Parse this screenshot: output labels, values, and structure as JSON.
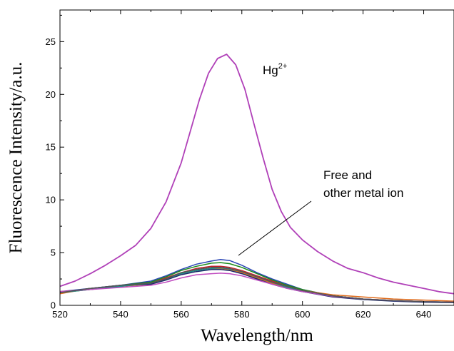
{
  "chart_data": {
    "type": "line",
    "xlabel": "Wavelength/nm",
    "ylabel": "Fluorescence Intensity/a.u.",
    "xlim": [
      520,
      650
    ],
    "ylim": [
      0,
      28
    ],
    "x_ticks": [
      520,
      540,
      560,
      580,
      600,
      620,
      640
    ],
    "y_ticks": [
      0,
      5,
      10,
      15,
      20,
      25
    ],
    "grid": false,
    "annotations": {
      "hg_main": "Hg",
      "hg_sup": "2+",
      "free_line1": "Free and",
      "free_line2": "other metal ion"
    },
    "series": [
      {
        "color": "#b040b8",
        "x": [
          520,
          525,
          530,
          535,
          540,
          545,
          550,
          555,
          560,
          563,
          566,
          569,
          572,
          575,
          578,
          581,
          584,
          587,
          590,
          593,
          596,
          600,
          605,
          610,
          615,
          620,
          625,
          630,
          635,
          640,
          645,
          650
        ],
        "values": [
          1.8,
          2.3,
          3.0,
          3.8,
          4.7,
          5.7,
          7.3,
          9.8,
          13.5,
          16.5,
          19.5,
          22.0,
          23.4,
          23.8,
          22.8,
          20.5,
          17.2,
          14.0,
          11.0,
          8.9,
          7.4,
          6.2,
          5.1,
          4.2,
          3.5,
          3.1,
          2.6,
          2.2,
          1.9,
          1.6,
          1.3,
          1.1
        ]
      },
      {
        "color": "#2a45b5",
        "x": [
          520,
          530,
          540,
          550,
          555,
          560,
          565,
          570,
          573,
          576,
          580,
          585,
          590,
          595,
          600,
          610,
          620,
          630,
          640,
          650
        ],
        "values": [
          1.3,
          1.6,
          1.9,
          2.3,
          2.8,
          3.4,
          3.9,
          4.2,
          4.35,
          4.25,
          3.8,
          3.1,
          2.5,
          2.0,
          1.5,
          0.9,
          0.6,
          0.45,
          0.35,
          0.3
        ]
      },
      {
        "color": "#1a8a1a",
        "x": [
          520,
          530,
          540,
          550,
          555,
          560,
          565,
          570,
          573,
          576,
          580,
          585,
          590,
          595,
          600,
          610,
          620,
          630,
          640,
          650
        ],
        "values": [
          1.2,
          1.5,
          1.9,
          2.2,
          2.7,
          3.3,
          3.7,
          4.0,
          4.05,
          3.95,
          3.6,
          3.0,
          2.4,
          1.9,
          1.5,
          0.9,
          0.6,
          0.45,
          0.35,
          0.3
        ]
      },
      {
        "color": "#e06b1a",
        "x": [
          520,
          530,
          540,
          550,
          555,
          560,
          565,
          570,
          573,
          576,
          580,
          585,
          590,
          595,
          600,
          610,
          620,
          630,
          640,
          650
        ],
        "values": [
          1.1,
          1.6,
          1.8,
          2.0,
          2.5,
          3.0,
          3.3,
          3.5,
          3.5,
          3.4,
          3.1,
          2.6,
          2.1,
          1.7,
          1.4,
          1.0,
          0.8,
          0.6,
          0.5,
          0.4
        ]
      },
      {
        "color": "#c0202a",
        "x": [
          520,
          530,
          540,
          550,
          555,
          560,
          565,
          570,
          573,
          576,
          580,
          585,
          590,
          595,
          600,
          610,
          620,
          630,
          640,
          650
        ],
        "values": [
          1.3,
          1.5,
          1.8,
          2.1,
          2.6,
          3.1,
          3.5,
          3.7,
          3.7,
          3.6,
          3.3,
          2.8,
          2.3,
          1.8,
          1.4,
          0.9,
          0.6,
          0.45,
          0.35,
          0.3
        ]
      },
      {
        "color": "#1a2a6a",
        "x": [
          520,
          530,
          540,
          550,
          555,
          560,
          565,
          570,
          573,
          576,
          580,
          585,
          590,
          595,
          600,
          610,
          620,
          630,
          640,
          650
        ],
        "values": [
          1.2,
          1.6,
          1.9,
          2.0,
          2.4,
          2.9,
          3.2,
          3.4,
          3.4,
          3.3,
          3.0,
          2.5,
          2.0,
          1.6,
          1.3,
          0.8,
          0.55,
          0.4,
          0.3,
          0.25
        ]
      },
      {
        "color": "#208a8a",
        "x": [
          520,
          530,
          540,
          550,
          555,
          560,
          565,
          570,
          573,
          576,
          580,
          585,
          590,
          595,
          600,
          610,
          620,
          630,
          640,
          650
        ],
        "values": [
          1.2,
          1.5,
          1.8,
          2.1,
          2.5,
          3.0,
          3.3,
          3.5,
          3.55,
          3.45,
          3.2,
          2.7,
          2.2,
          1.7,
          1.4,
          0.9,
          0.6,
          0.45,
          0.35,
          0.3
        ]
      },
      {
        "color": "#c04cc0",
        "x": [
          520,
          530,
          540,
          550,
          555,
          560,
          565,
          570,
          573,
          576,
          580,
          585,
          590,
          595,
          600,
          610,
          620,
          630,
          640,
          650
        ],
        "values": [
          1.3,
          1.5,
          1.7,
          1.9,
          2.2,
          2.6,
          2.9,
          3.0,
          3.05,
          3.0,
          2.8,
          2.4,
          2.0,
          1.6,
          1.3,
          0.85,
          0.6,
          0.45,
          0.35,
          0.3
        ]
      },
      {
        "color": "#555555",
        "x": [
          520,
          530,
          540,
          550,
          555,
          560,
          565,
          570,
          573,
          576,
          580,
          585,
          590,
          595,
          600,
          610,
          620,
          630,
          640,
          650
        ],
        "values": [
          1.2,
          1.6,
          1.9,
          2.1,
          2.5,
          3.1,
          3.4,
          3.6,
          3.6,
          3.5,
          3.2,
          2.7,
          2.2,
          1.8,
          1.4,
          0.9,
          0.6,
          0.45,
          0.35,
          0.3
        ]
      }
    ]
  }
}
